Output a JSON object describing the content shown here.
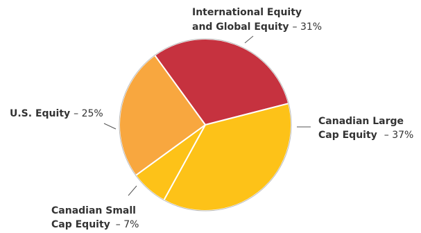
{
  "chart_data": {
    "type": "pie",
    "title": "",
    "slices": [
      {
        "name": "International Equity and Global Equity",
        "value": 31,
        "color": "#c6323f",
        "label_lines": [
          "International Equity",
          "and Global Equity"
        ],
        "value_text": "– 31%"
      },
      {
        "name": "Canadian Large Cap Equity",
        "value": 37,
        "color": "#fdc218",
        "label_lines": [
          "Canadian Large",
          "Cap Equity"
        ],
        "value_text": "– 37%"
      },
      {
        "name": "Canadian Small Cap Equity",
        "value": 7,
        "color": "#fdc218",
        "label_lines": [
          "Canadian Small",
          "Cap Equity"
        ],
        "value_text": "– 7%"
      },
      {
        "name": "U.S. Equity",
        "value": 25,
        "color": "#f8a73f",
        "label_lines": [
          "U.S. Equity"
        ],
        "value_text": "– 25%"
      }
    ]
  }
}
